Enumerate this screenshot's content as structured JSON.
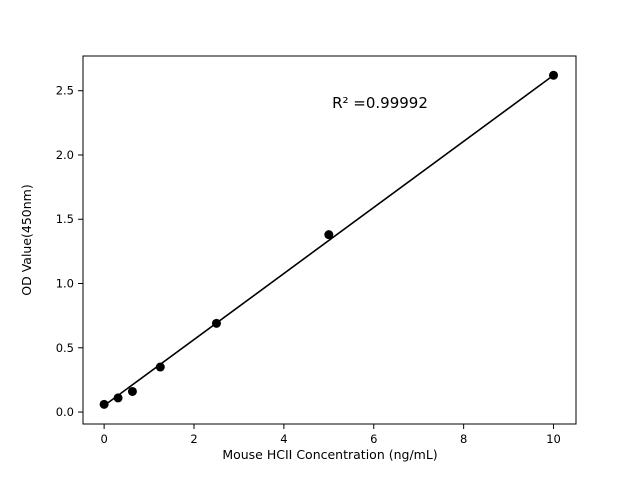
{
  "figure": {
    "background": "#ffffff"
  },
  "chart_data": {
    "type": "scatter",
    "title": "",
    "xlabel": "Mouse HCII Concentration (ng/mL)",
    "ylabel": "OD Value(450nm)",
    "annotation": "R² =0.99992",
    "x": [
      0,
      0.31,
      0.63,
      1.25,
      2.5,
      5,
      10
    ],
    "y": [
      0.06,
      0.11,
      0.16,
      0.35,
      0.69,
      1.38,
      2.62
    ],
    "fit_line": {
      "x_start": 0,
      "y_start": 0.05,
      "x_end": 10,
      "y_end": 2.62
    },
    "x_ticks": [
      "0",
      "2",
      "4",
      "6",
      "8",
      "10"
    ],
    "y_ticks": [
      "0.0",
      "0.5",
      "1.0",
      "1.5",
      "2.0",
      "2.5"
    ],
    "xlim": [
      -0.47,
      10.5
    ],
    "ylim": [
      -0.093,
      2.77
    ],
    "grid": false,
    "legend_position": "none",
    "marker_color": "#000000",
    "line_color": "#000000",
    "frame_color": "#000000"
  }
}
